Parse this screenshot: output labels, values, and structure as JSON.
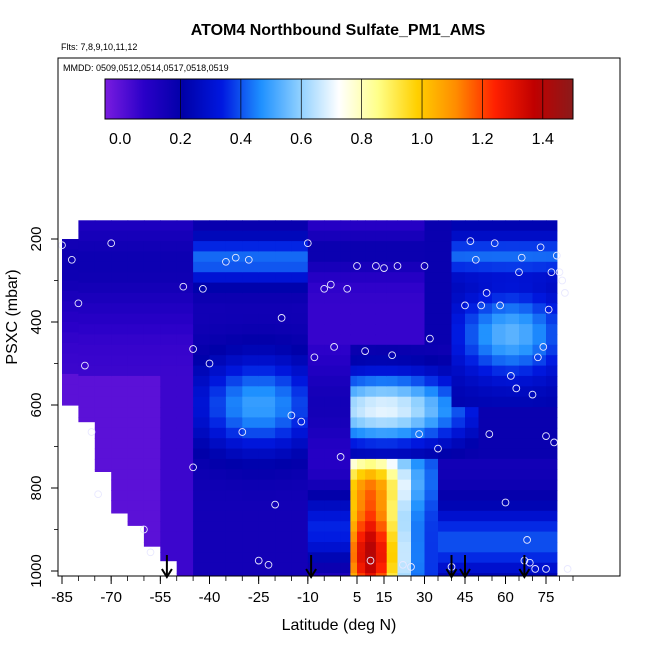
{
  "chart_data": {
    "type": "heatmap",
    "title": "ATOM4 Northbound Sulfate_PM1_AMS",
    "flights_note": "Flts: 7,8,9,10,11,12",
    "dates_note": "MMDD: 0509,0512,0514,0517,0518,0519",
    "xlabel": "Latitude (deg N)",
    "ylabel": "PSXC (mbar)",
    "x_ticks": [
      "-85",
      "-70",
      "-55",
      "-40",
      "-25",
      "-10",
      "5",
      "15",
      "30",
      "45",
      "60",
      "75"
    ],
    "y_ticks": [
      "200",
      "400",
      "600",
      "800",
      "1000"
    ],
    "y_axis": "inverted",
    "colorbar": {
      "ticks": [
        "0.0",
        "0.2",
        "0.4",
        "0.6",
        "0.8",
        "1.0",
        "1.2",
        "1.4"
      ],
      "range": [
        -0.05,
        1.5
      ],
      "colors": [
        "#7a1ce0",
        "#2a00c8",
        "#0000a8",
        "#0018e0",
        "#1e90ff",
        "#8fd0ff",
        "#ffffff",
        "#ffff88",
        "#ffd000",
        "#ff8c00",
        "#ff2000",
        "#c00000",
        "#8b1a1a"
      ]
    },
    "colorbar_colors_note": "palette sampled from purple (low) to dark red (high)",
    "profile_arrows_lat": [
      -53,
      -9,
      40,
      45,
      67
    ],
    "field_summary": [
      {
        "region": "southern hemisphere lower troposphere (-85 to -55, 550-1000 mbar)",
        "value": 0.0
      },
      {
        "region": "southern mid latitudes mid troposphere",
        "value": 0.15
      },
      {
        "region": "tropical upper troposphere (-10 to 25, 250-450 mbar)",
        "value": 0.05
      },
      {
        "region": "boundary layer near 5-30 N (800-1000 mbar)",
        "value": 1.25
      },
      {
        "region": "northern mid latitudes 500-650 mbar",
        "value": 0.45
      },
      {
        "region": "upper troposphere 200-300 mbar",
        "value": 0.2
      }
    ]
  }
}
